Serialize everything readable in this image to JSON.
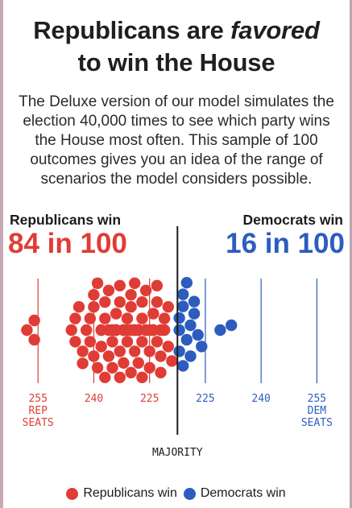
{
  "header": {
    "title_line1": "Republicans are",
    "title_emphasis": "favored",
    "title_line2": "to win the House",
    "description": "The Deluxe version of our model simulates the election 40,000 times to see which party wins the House most often. This sample of 100 outcomes gives you an idea of the range of scenarios the model considers possible."
  },
  "summary": {
    "rep_label": "Republicans win",
    "rep_value": "84 in 100",
    "dem_label": "Democrats win",
    "dem_value": "16 in 100"
  },
  "colors": {
    "republican": "#e03c36",
    "democrat": "#2c5dbe",
    "majority_line": "#1b1b1b"
  },
  "chart_data": {
    "type": "scatter",
    "title": "",
    "x_axis": {
      "ticks": [
        {
          "seats": 255,
          "party": "rep",
          "label": "255",
          "sublabel": [
            "REP",
            "SEATS"
          ]
        },
        {
          "seats": 240,
          "party": "rep",
          "label": "240"
        },
        {
          "seats": 225,
          "party": "rep",
          "label": "225"
        },
        {
          "seats": 225,
          "party": "dem",
          "label": "225"
        },
        {
          "seats": 240,
          "party": "dem",
          "label": "240"
        },
        {
          "seats": 255,
          "party": "dem",
          "label": "255",
          "sublabel": [
            "DEM",
            "SEATS"
          ]
        }
      ],
      "majority_label": "MAJORITY",
      "majority_rep_seats": 218
    },
    "series": [
      {
        "name": "Republicans win",
        "party": "rep",
        "count": 84,
        "rep_seats": [
          258,
          256,
          256,
          246,
          245,
          245,
          244,
          243,
          243,
          242,
          241,
          241,
          240,
          240,
          240,
          239,
          239,
          238,
          238,
          238,
          237,
          237,
          237,
          236,
          236,
          236,
          235,
          235,
          235,
          235,
          234,
          234,
          234,
          234,
          233,
          233,
          233,
          233,
          232,
          232,
          232,
          232,
          231,
          231,
          231,
          231,
          230,
          230,
          230,
          230,
          229,
          229,
          229,
          229,
          228,
          228,
          228,
          228,
          227,
          227,
          227,
          227,
          226,
          226,
          226,
          226,
          225,
          225,
          225,
          224,
          224,
          224,
          224,
          223,
          223,
          223,
          222,
          222,
          222,
          221,
          221,
          220,
          220,
          219
        ]
      },
      {
        "name": "Democrats win",
        "party": "dem",
        "count": 16,
        "rep_seats": [
          217,
          217,
          217,
          216,
          216,
          216,
          215,
          215,
          214,
          214,
          213,
          213,
          212,
          211,
          206,
          203
        ]
      }
    ],
    "legend_position": "bottom-center"
  }
}
